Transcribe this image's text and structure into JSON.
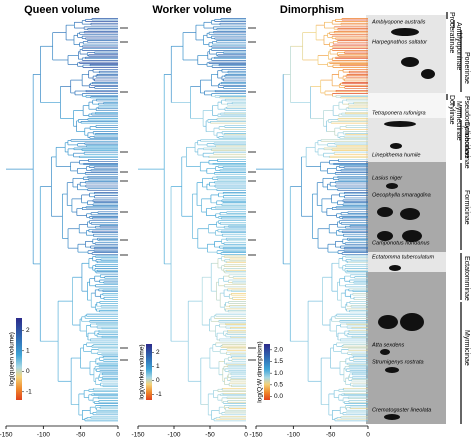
{
  "panels": [
    {
      "title": "Queen volume",
      "colorbar": {
        "label": "log(queen volume)",
        "lim": [
          -1.4,
          2.6
        ],
        "ticks": [
          -1,
          0,
          1,
          2
        ]
      }
    },
    {
      "title": "Worker volume",
      "colorbar": {
        "label": "log(worker volume)",
        "lim": [
          -1.4,
          2.6
        ],
        "ticks": [
          -1,
          0,
          1,
          2
        ]
      }
    },
    {
      "title": "Dimorphism",
      "colorbar": {
        "label": "log(Q:W dimorphism)",
        "lim": [
          -0.15,
          2.25
        ],
        "ticks": [
          {
            "value": 0,
            "label": "0.0"
          },
          {
            "value": 0.5,
            "label": "0.5"
          },
          {
            "value": 1,
            "label": "1.0"
          },
          {
            "value": 1.5,
            "label": "1.5"
          },
          {
            "value": 2,
            "label": "2.0"
          }
        ]
      }
    }
  ],
  "time_axis": {
    "lim": [
      -150,
      0
    ],
    "ticks": [
      -150,
      -100,
      -50,
      0
    ]
  },
  "species": [
    "Amblyopone australis",
    "Harpegnathos saltator",
    "Tetraponera rufonigra",
    "Linepithema humile",
    "Lasius niger",
    "Oecophylla smaragdina",
    "Camponotus floridanus",
    "Ectatomma tuberculatum",
    "Atta sexdens",
    "Strumigenys rostrata",
    "Crematogaster lineolata"
  ],
  "subfamilies": [
    "Proceratiinae",
    "Amblyoponinae",
    "Ponerinae",
    "Dorylinae",
    "Myrmeciinae",
    "Pseudomyrmecinae",
    "Dolichoderinae",
    "Formicinae",
    "Ectatomminae",
    "Myrmicinae"
  ]
}
